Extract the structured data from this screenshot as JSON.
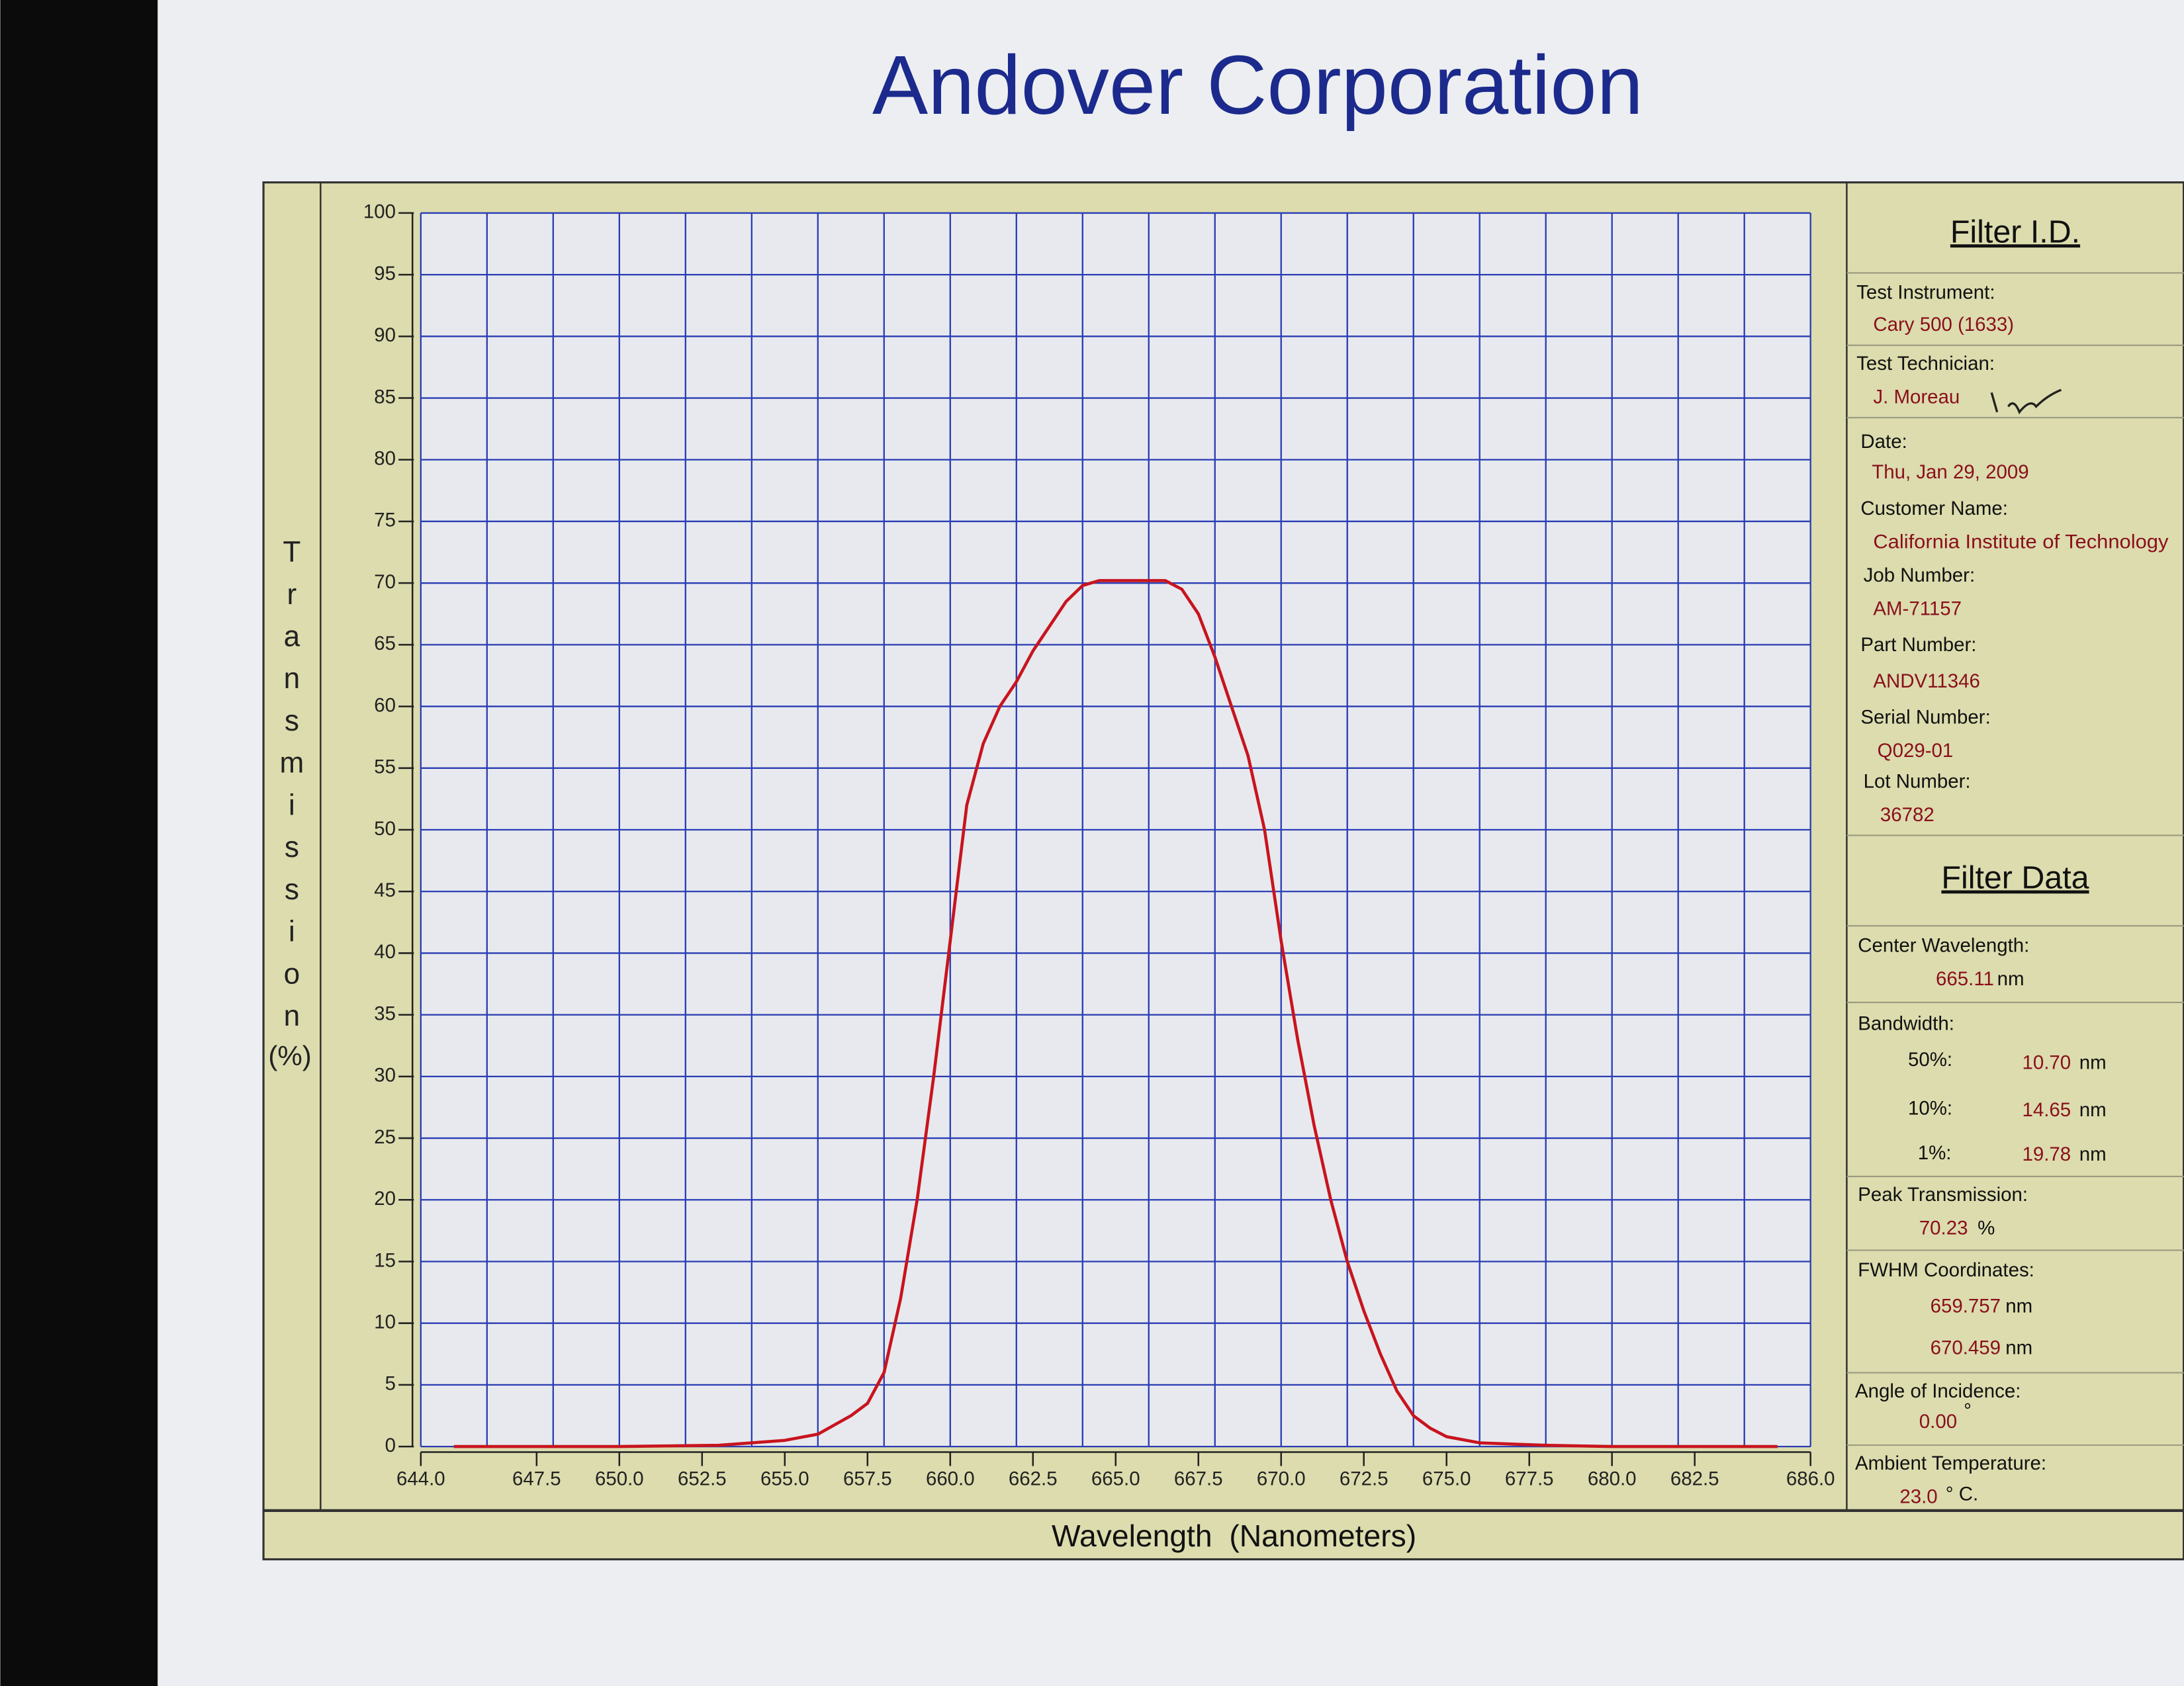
{
  "header": {
    "title": "Andover Corporation"
  },
  "chart_data": {
    "type": "line",
    "x_label": "Wavelength  (Nanometers)",
    "y_label": "Transmission",
    "y_unit": "(%)",
    "x": [
      645,
      650,
      653,
      655,
      656,
      657,
      657.5,
      658,
      658.5,
      659,
      659.5,
      660,
      660.5,
      661,
      661.5,
      662,
      662.5,
      663,
      663.5,
      664,
      664.5,
      665,
      665.5,
      666,
      666.5,
      667,
      667.5,
      668,
      668.5,
      669,
      669.5,
      670,
      670.5,
      671,
      671.5,
      672,
      672.5,
      673,
      673.5,
      674,
      674.5,
      675,
      676,
      678,
      680,
      685
    ],
    "values": [
      0,
      0,
      0.1,
      0.5,
      1,
      2.5,
      3.5,
      6,
      12,
      20,
      30,
      41,
      52,
      57,
      60,
      62,
      64.5,
      66.5,
      68.5,
      69.8,
      70.2,
      70.2,
      70.2,
      70.2,
      70.2,
      69.5,
      67.5,
      64,
      60,
      56,
      50,
      41,
      33,
      26,
      20,
      15,
      11,
      7.5,
      4.5,
      2.5,
      1.5,
      0.8,
      0.3,
      0.1,
      0,
      0
    ],
    "color": "#c8141e",
    "xlim": [
      644,
      686
    ],
    "xticks": [
      {
        "value": 644,
        "label": "644.0"
      },
      {
        "value": 647.5,
        "label": "647.5"
      },
      {
        "value": 650,
        "label": "650.0"
      },
      {
        "value": 652.5,
        "label": "652.5"
      },
      {
        "value": 655,
        "label": "655.0"
      },
      {
        "value": 657.5,
        "label": "657.5"
      },
      {
        "value": 660,
        "label": "660.0"
      },
      {
        "value": 662.5,
        "label": "662.5"
      },
      {
        "value": 665,
        "label": "665.0"
      },
      {
        "value": 667.5,
        "label": "667.5"
      },
      {
        "value": 670,
        "label": "670.0"
      },
      {
        "value": 672.5,
        "label": "672.5"
      },
      {
        "value": 675,
        "label": "675.0"
      },
      {
        "value": 677.5,
        "label": "677.5"
      },
      {
        "value": 680,
        "label": "680.0"
      },
      {
        "value": 682.5,
        "label": "682.5"
      },
      {
        "value": 686,
        "label": "686.0"
      }
    ],
    "x_grid": [
      644,
      646,
      648,
      650,
      652,
      654,
      656,
      658,
      660,
      662,
      664,
      666,
      668,
      670,
      672,
      674,
      676,
      678,
      680,
      682,
      684,
      686
    ],
    "ylim": [
      0,
      100
    ],
    "yticks": [
      0,
      5,
      10,
      15,
      20,
      25,
      30,
      35,
      40,
      45,
      50,
      55,
      60,
      65,
      70,
      75,
      80,
      85,
      90,
      95,
      100
    ],
    "grid": true,
    "grid_color": "#2a3cb4"
  },
  "filter_id": {
    "heading": "Filter I.D.",
    "fields": [
      {
        "label": "Test Instrument:",
        "value": "Cary 500 (1633)"
      },
      {
        "label": "Test Technician:",
        "value": "J. Moreau"
      },
      {
        "label": "Date:",
        "value": "Thu, Jan 29, 2009"
      },
      {
        "label": "Customer Name:",
        "value": "California Institute of Technology"
      },
      {
        "label": "Job Number:",
        "value": "AM-71157"
      },
      {
        "label": "Part Number:",
        "value": "ANDV11346"
      },
      {
        "label": "Serial Number:",
        "value": "Q029-01"
      },
      {
        "label": "Lot Number:",
        "value": "36782"
      }
    ]
  },
  "filter_data": {
    "heading": "Filter Data",
    "center_wavelength": {
      "label": "Center Wavelength:",
      "value": "665.11",
      "unit": "nm"
    },
    "bandwidth": {
      "label": "Bandwidth:",
      "rows": [
        {
          "level": "50%:",
          "value": "10.70",
          "unit": "nm"
        },
        {
          "level": "10%:",
          "value": "14.65",
          "unit": "nm"
        },
        {
          "level": "1%:",
          "value": "19.78",
          "unit": "nm"
        }
      ]
    },
    "peak_transmission": {
      "label": "Peak Transmission:",
      "value": "70.23",
      "unit": "%"
    },
    "fwhm": {
      "label": "FWHM Coordinates:",
      "rows": [
        {
          "value": "659.757",
          "unit": "nm"
        },
        {
          "value": "670.459",
          "unit": "nm"
        }
      ]
    },
    "angle_of_incidence": {
      "label": "Angle of Incidence:",
      "value": "0.00",
      "unit": "°"
    },
    "ambient_temperature": {
      "label": "Ambient Temperature:",
      "value": "23.0",
      "unit": "° C."
    }
  }
}
